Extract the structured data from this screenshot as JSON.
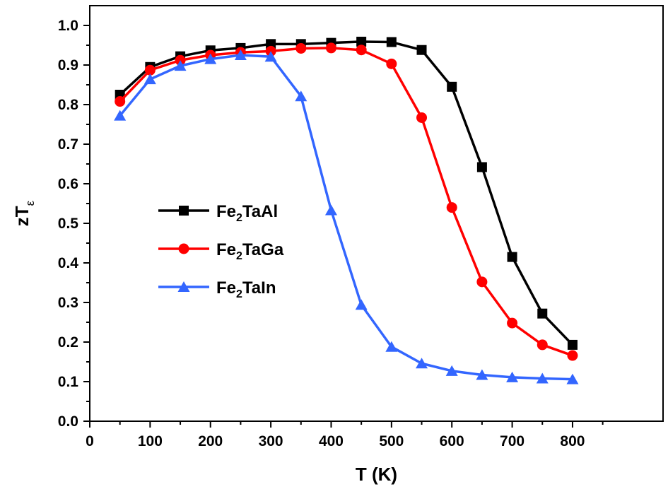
{
  "chart_data": {
    "type": "line",
    "xlabel": "T (K)",
    "ylabel": {
      "main": "zT",
      "sub": "ε"
    },
    "xlim": [
      0,
      950
    ],
    "ylim": [
      0,
      1.05
    ],
    "xticks": [
      0,
      100,
      200,
      300,
      400,
      500,
      600,
      700,
      800
    ],
    "yticks": [
      0.0,
      0.1,
      0.2,
      0.3,
      0.4,
      0.5,
      0.6,
      0.7,
      0.8,
      0.9,
      1.0
    ],
    "xtick_labels": [
      "0",
      "100",
      "200",
      "300",
      "400",
      "500",
      "600",
      "700",
      "800"
    ],
    "ytick_labels": [
      "0.0",
      "0.1",
      "0.2",
      "0.3",
      "0.4",
      "0.5",
      "0.6",
      "0.7",
      "0.8",
      "0.9",
      "1.0"
    ],
    "grid": false,
    "legend_position": "center-left",
    "x": [
      50,
      100,
      150,
      200,
      250,
      300,
      350,
      400,
      450,
      500,
      550,
      600,
      650,
      700,
      750,
      800
    ],
    "series": [
      {
        "name": "Fe2TaAl",
        "label_parts": {
          "pre": "Fe",
          "sub": "2",
          "post": "TaAl"
        },
        "color": "#000000",
        "marker": "square",
        "values": [
          0.825,
          0.895,
          0.922,
          0.937,
          0.943,
          0.953,
          0.953,
          0.956,
          0.959,
          0.958,
          0.938,
          0.845,
          0.642,
          0.415,
          0.272,
          0.193
        ]
      },
      {
        "name": "Fe2TaGa",
        "label_parts": {
          "pre": "Fe",
          "sub": "2",
          "post": "TaGa"
        },
        "color": "#ff0000",
        "marker": "circle",
        "values": [
          0.808,
          0.887,
          0.912,
          0.925,
          0.932,
          0.935,
          0.942,
          0.943,
          0.938,
          0.903,
          0.767,
          0.54,
          0.352,
          0.248,
          0.193,
          0.166
        ]
      },
      {
        "name": "Fe2TaIn",
        "label_parts": {
          "pre": "Fe",
          "sub": "2",
          "post": "TaIn"
        },
        "color": "#3366ff",
        "marker": "triangle",
        "values": [
          0.772,
          0.864,
          0.898,
          0.915,
          0.925,
          0.921,
          0.821,
          0.533,
          0.294,
          0.188,
          0.146,
          0.127,
          0.117,
          0.111,
          0.108,
          0.106
        ]
      }
    ]
  }
}
